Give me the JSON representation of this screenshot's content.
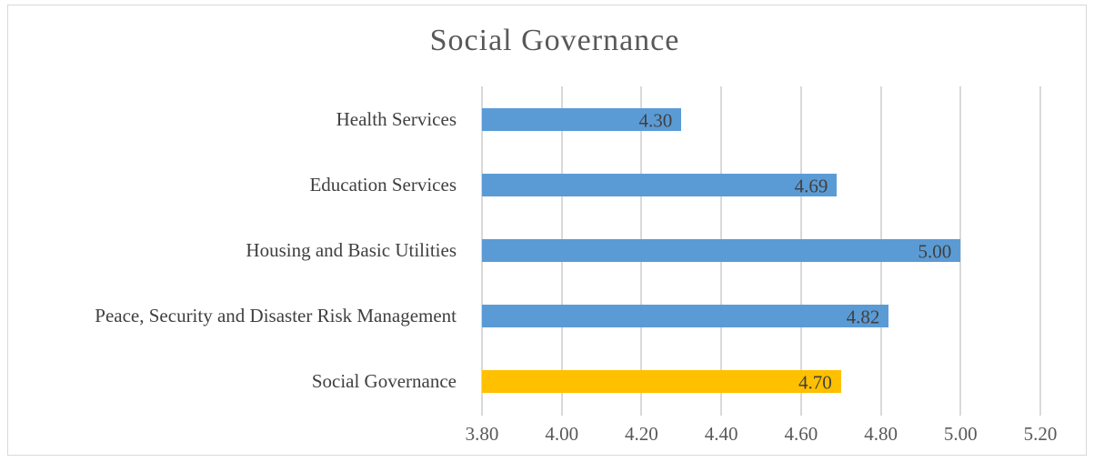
{
  "chart_data": {
    "type": "hbar",
    "title": "Social Governance",
    "categories": [
      "Health Services",
      "Education Services",
      "Housing and Basic Utilities",
      "Peace, Security and Disaster Risk Management",
      "Social Governance"
    ],
    "values": [
      4.3,
      4.69,
      5.0,
      4.82,
      4.7
    ],
    "value_labels": [
      "4.30",
      "4.69",
      "5.00",
      "4.82",
      "4.70"
    ],
    "colors": [
      "#5b9bd5",
      "#5b9bd5",
      "#5b9bd5",
      "#5b9bd5",
      "#ffc000"
    ],
    "xlim": [
      3.8,
      5.2
    ],
    "xticks": [
      {
        "value": 3.8,
        "label": "3.80"
      },
      {
        "value": 4.0,
        "label": "4.00"
      },
      {
        "value": 4.2,
        "label": "4.20"
      },
      {
        "value": 4.4,
        "label": "4.40"
      },
      {
        "value": 4.6,
        "label": "4.60"
      },
      {
        "value": 4.8,
        "label": "4.80"
      },
      {
        "value": 5.0,
        "label": "5.00"
      },
      {
        "value": 5.2,
        "label": "5.20"
      }
    ],
    "grid": true
  }
}
